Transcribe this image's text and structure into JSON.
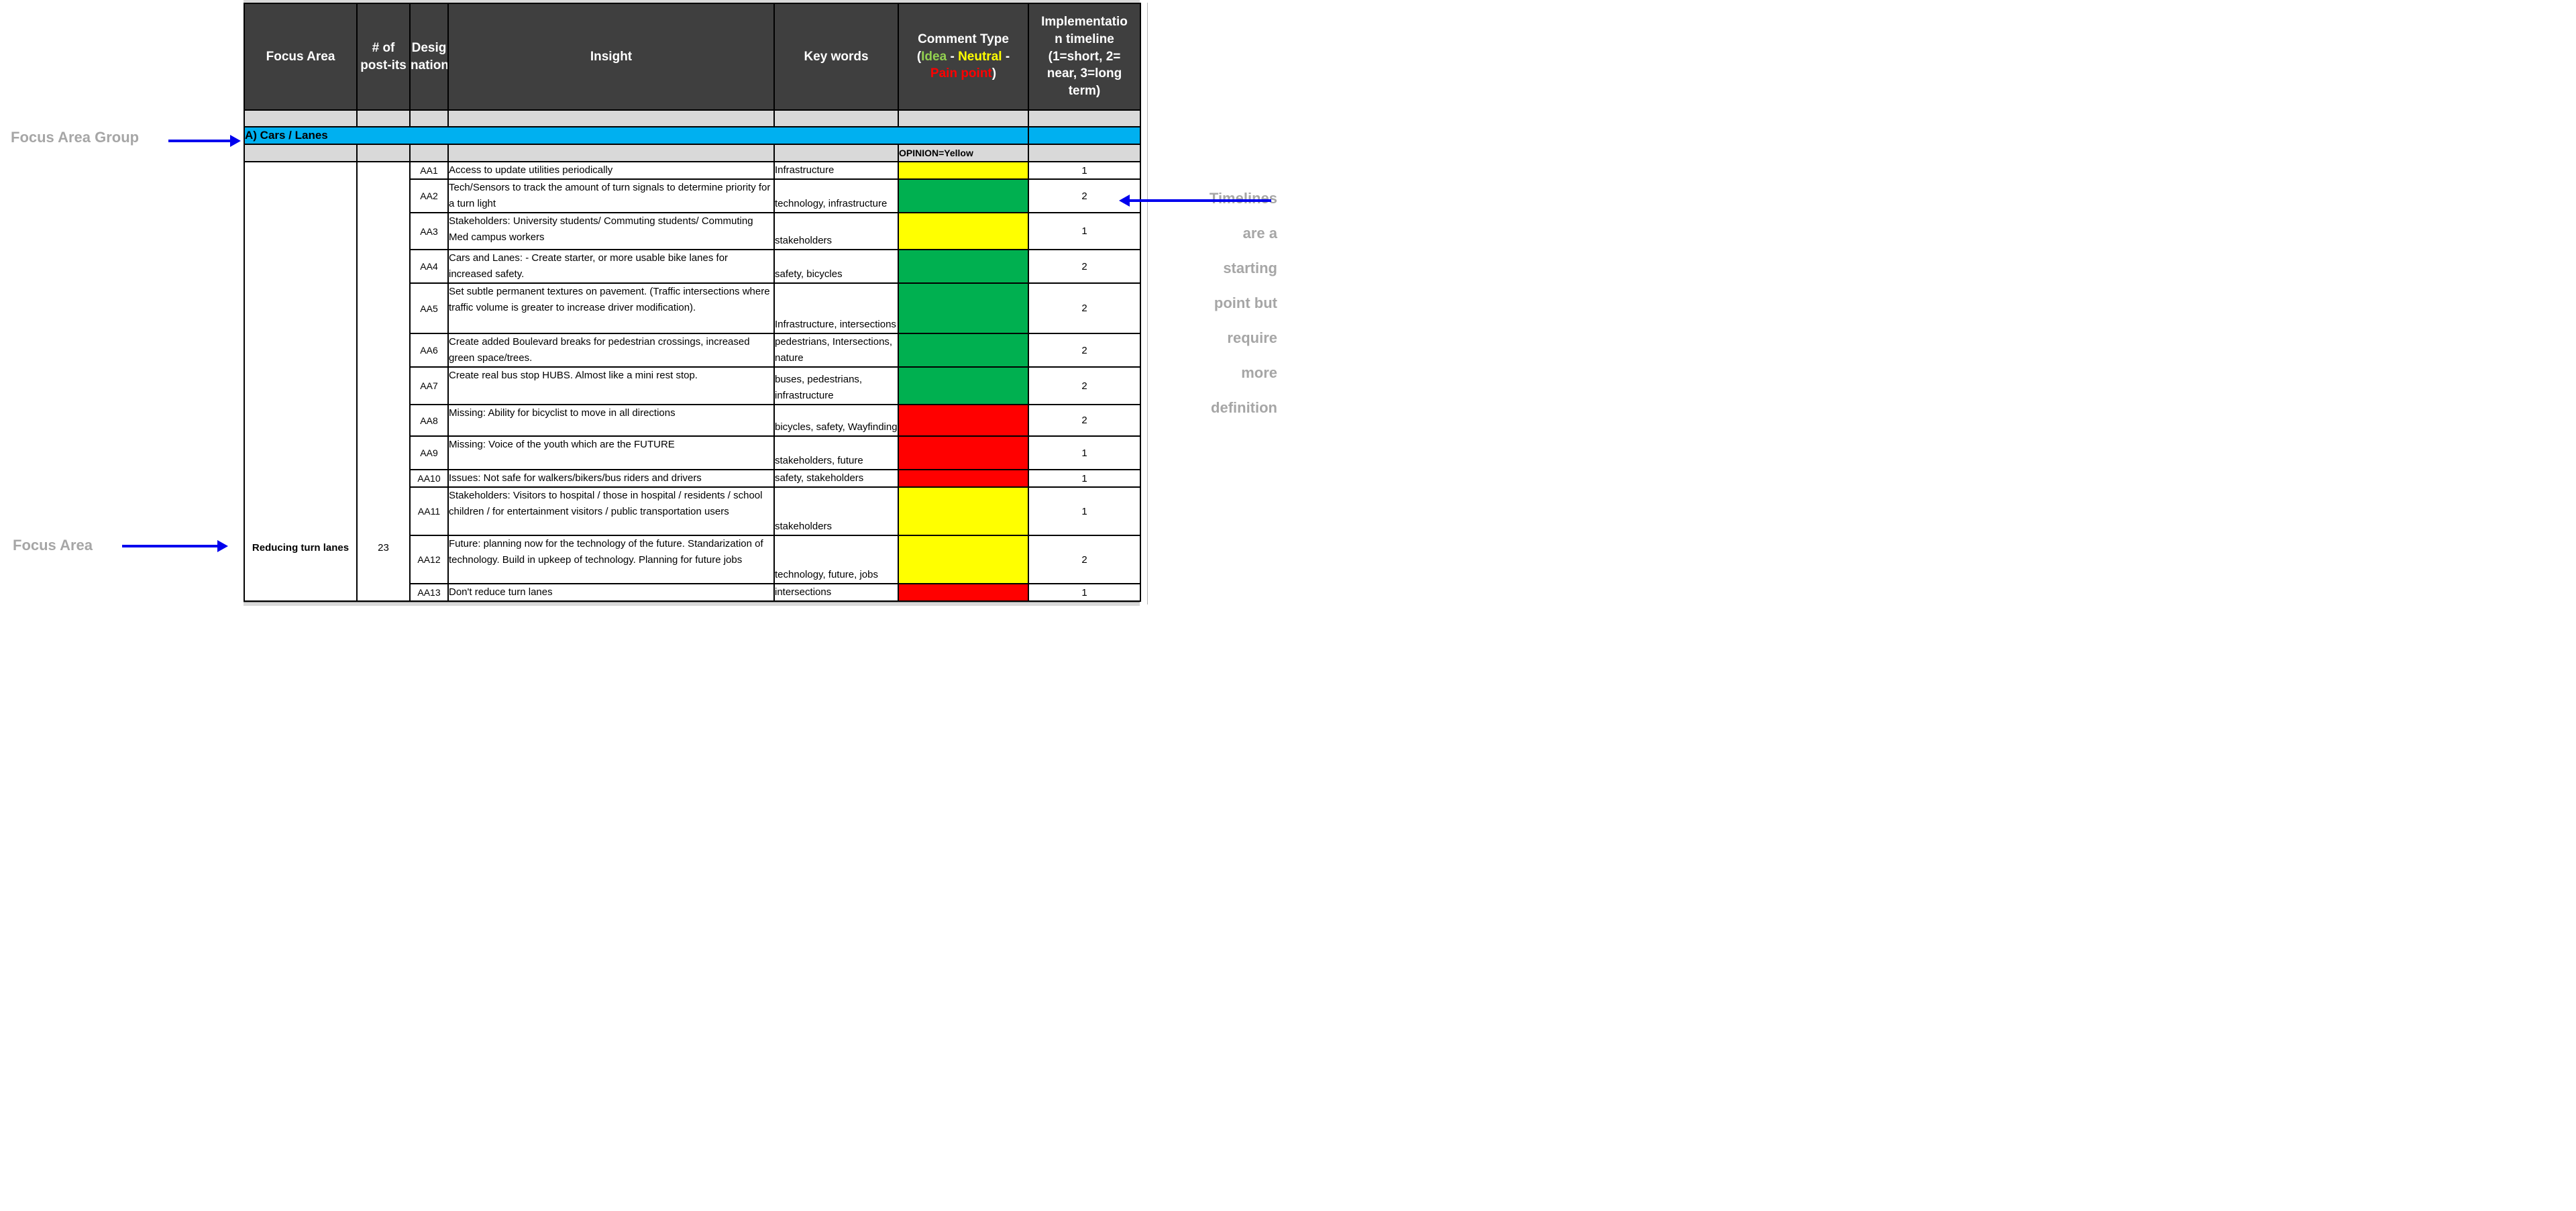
{
  "colors": {
    "cyan": "#00B0F0",
    "green": "#00B050",
    "yellow": "#FFFF00",
    "red": "#FF0000",
    "idea_green": "#92D050",
    "header_bg": "#3F3F3F",
    "gray_row": "#D9D9D9",
    "annotation_gray": "#A6A6A6",
    "arrow_blue": "#0000EE"
  },
  "annotations": {
    "focus_area_group_label": "Focus Area Group",
    "focus_area_label": "Focus Area",
    "timelines_note": "Timelines are a starting point but require more definition"
  },
  "table": {
    "headers": {
      "focus_area": "Focus Area",
      "post_its": "# of post-its",
      "designation": "Desig\nnation",
      "insight": "Insight",
      "key_words": "Key words",
      "comment": {
        "title": "Comment Type",
        "open": "(",
        "idea": "Idea",
        "sep1": " - ",
        "neutral": "Neutral",
        "sep2": " -",
        "pain": "Pain point",
        "close": ")"
      },
      "implementation": "Implementatio\nn timeline\n(1=short, 2=\nnear, 3=long\nterm)"
    },
    "group_row": {
      "label": "A) Cars / Lanes"
    },
    "opinion_row": {
      "label": "OPINION=Yellow"
    },
    "focus_area": {
      "name": "Reducing turn lanes",
      "post_its": "23"
    },
    "rows": [
      {
        "designation": "AA1",
        "insight": "Access to update utilities periodically",
        "key_words": "Infrastructure",
        "comment_color": "yellow",
        "timeline": "1"
      },
      {
        "designation": "AA2",
        "insight": "Tech/Sensors to track the amount of turn signals to determine priority for a turn light",
        "key_words": "technology, infrastructure",
        "comment_color": "green",
        "timeline": "2"
      },
      {
        "designation": "AA3",
        "insight": "Stakeholders: University students/ Commuting students/ Commuting Med campus workers",
        "key_words": "stakeholders",
        "comment_color": "yellow",
        "timeline": "1"
      },
      {
        "designation": "AA4",
        "insight": "Cars and Lanes: - Create starter, or more usable bike lanes for increased safety.",
        "key_words": "safety, bicycles",
        "comment_color": "green",
        "timeline": "2"
      },
      {
        "designation": "AA5",
        "insight": "Set subtle permanent textures on pavement. (Traffic intersections where traffic volume is greater to increase driver modification).",
        "key_words": "Infrastructure, intersections",
        "comment_color": "green",
        "timeline": "2"
      },
      {
        "designation": "AA6",
        "insight": "Create added Boulevard breaks for pedestrian crossings, increased green space/trees.",
        "key_words": "pedestrians, Intersections, nature",
        "comment_color": "green",
        "timeline": "2"
      },
      {
        "designation": "AA7",
        "insight": "Create real bus stop HUBS. Almost like a mini rest stop.",
        "key_words": "buses, pedestrians, infrastructure",
        "comment_color": "green",
        "timeline": "2"
      },
      {
        "designation": "AA8",
        "insight": "Missing: Ability for bicyclist to move in all directions",
        "key_words": "bicycles, safety, Wayfinding",
        "comment_color": "red",
        "timeline": "2"
      },
      {
        "designation": "AA9",
        "insight": "Missing: Voice of the youth which are the FUTURE",
        "key_words": "stakeholders, future",
        "comment_color": "red",
        "timeline": "1"
      },
      {
        "designation": "AA10",
        "insight": "Issues: Not safe for walkers/bikers/bus riders and drivers",
        "key_words": "safety, stakeholders",
        "comment_color": "red",
        "timeline": "1"
      },
      {
        "designation": "AA11",
        "insight": "Stakeholders: Visitors to hospital / those in hospital / residents / school children / for entertainment visitors / public transportation users",
        "key_words": "stakeholders",
        "comment_color": "yellow",
        "timeline": "1"
      },
      {
        "designation": "AA12",
        "insight": "Future: planning now for the technology of the future. Standarization of technology. Build in upkeep of technology. Planning for future jobs",
        "key_words": "technology, future, jobs",
        "comment_color": "yellow",
        "timeline": "2"
      },
      {
        "designation": "AA13",
        "insight": "Don't reduce turn lanes",
        "key_words": "intersections",
        "comment_color": "red",
        "timeline": "1"
      }
    ]
  }
}
